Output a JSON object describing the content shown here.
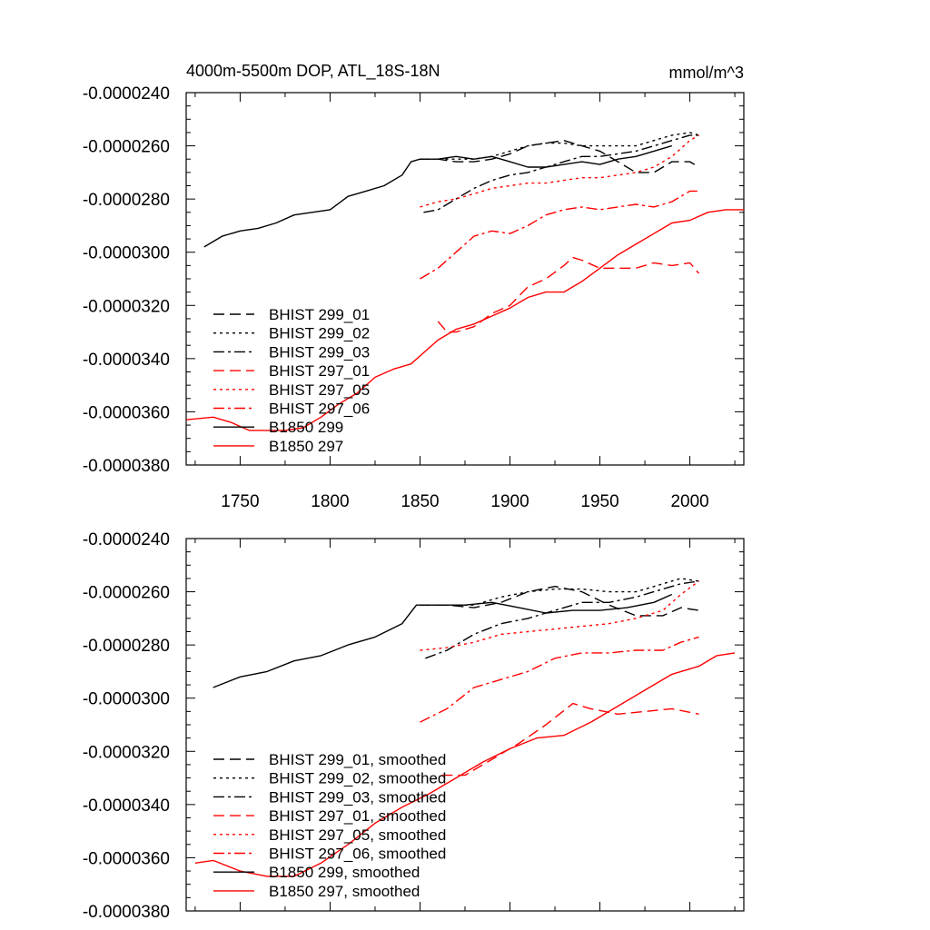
{
  "chart_data": [
    {
      "type": "line",
      "title": "4000m-5500m DOP, ATL_18S-18N",
      "units": "mmol/m^3",
      "xlim": [
        1720,
        2030
      ],
      "ylim": [
        -3.8e-05,
        -2.4e-05
      ],
      "xticks": [
        1750,
        1800,
        1850,
        1900,
        1950,
        2000
      ],
      "xtick_labels": [
        "1750",
        "1800",
        "1850",
        "1900",
        "1950",
        "2000"
      ],
      "yticks": [
        -2.4e-05,
        -2.6e-05,
        -2.8e-05,
        -3e-05,
        -3.2e-05,
        -3.4e-05,
        -3.6e-05,
        -3.8e-05
      ],
      "ytick_labels": [
        "-0.0000240",
        "-0.0000260",
        "-0.0000280",
        "-0.0000300",
        "-0.0000320",
        "-0.0000340",
        "-0.0000360",
        "-0.0000380"
      ],
      "series": [
        {
          "name": "BHIST 299_01",
          "color": "#000000",
          "dash": "dash",
          "x": [
            1850,
            1860,
            1870,
            1880,
            1890,
            1900,
            1910,
            1920,
            1930,
            1940,
            1950,
            1960,
            1970,
            1980,
            1990,
            2000,
            2005
          ],
          "y": [
            -2.65e-05,
            -2.65e-05,
            -2.66e-05,
            -2.66e-05,
            -2.65e-05,
            -2.63e-05,
            -2.6e-05,
            -2.59e-05,
            -2.58e-05,
            -2.6e-05,
            -2.62e-05,
            -2.66e-05,
            -2.7e-05,
            -2.7e-05,
            -2.66e-05,
            -2.66e-05,
            -2.68e-05
          ]
        },
        {
          "name": "BHIST 299_02",
          "color": "#000000",
          "dash": "dot",
          "x": [
            1850,
            1860,
            1870,
            1880,
            1890,
            1900,
            1910,
            1920,
            1930,
            1940,
            1950,
            1960,
            1970,
            1980,
            1990,
            2000,
            2005
          ],
          "y": [
            -2.65e-05,
            -2.65e-05,
            -2.65e-05,
            -2.65e-05,
            -2.64e-05,
            -2.62e-05,
            -2.6e-05,
            -2.59e-05,
            -2.59e-05,
            -2.6e-05,
            -2.6e-05,
            -2.6e-05,
            -2.6e-05,
            -2.58e-05,
            -2.56e-05,
            -2.55e-05,
            -2.56e-05
          ]
        },
        {
          "name": "BHIST 299_03",
          "color": "#000000",
          "dash": "dashdot",
          "x": [
            1852,
            1860,
            1870,
            1880,
            1890,
            1900,
            1910,
            1920,
            1930,
            1940,
            1950,
            1960,
            1970,
            1980,
            1990,
            2000,
            2005
          ],
          "y": [
            -2.85e-05,
            -2.84e-05,
            -2.8e-05,
            -2.76e-05,
            -2.73e-05,
            -2.71e-05,
            -2.7e-05,
            -2.68e-05,
            -2.66e-05,
            -2.64e-05,
            -2.64e-05,
            -2.63e-05,
            -2.62e-05,
            -2.6e-05,
            -2.58e-05,
            -2.56e-05,
            -2.56e-05
          ]
        },
        {
          "name": "BHIST 297_01",
          "color": "#ff0000",
          "dash": "dash",
          "x": [
            1860,
            1865,
            1870,
            1880,
            1890,
            1900,
            1910,
            1920,
            1930,
            1935,
            1940,
            1950,
            1960,
            1970,
            1980,
            1990,
            2000,
            2005
          ],
          "y": [
            -3.26e-05,
            -3.3e-05,
            -3.3e-05,
            -3.28e-05,
            -3.23e-05,
            -3.2e-05,
            -3.13e-05,
            -3.1e-05,
            -3.05e-05,
            -3.02e-05,
            -3.03e-05,
            -3.06e-05,
            -3.06e-05,
            -3.06e-05,
            -3.04e-05,
            -3.05e-05,
            -3.04e-05,
            -3.08e-05
          ]
        },
        {
          "name": "BHIST 297_05",
          "color": "#ff0000",
          "dash": "dot",
          "x": [
            1850,
            1860,
            1870,
            1880,
            1890,
            1900,
            1910,
            1920,
            1930,
            1940,
            1950,
            1960,
            1970,
            1980,
            1990,
            2000,
            2005
          ],
          "y": [
            -2.83e-05,
            -2.81e-05,
            -2.8e-05,
            -2.78e-05,
            -2.76e-05,
            -2.75e-05,
            -2.74e-05,
            -2.74e-05,
            -2.73e-05,
            -2.72e-05,
            -2.72e-05,
            -2.71e-05,
            -2.7e-05,
            -2.68e-05,
            -2.64e-05,
            -2.58e-05,
            -2.56e-05
          ]
        },
        {
          "name": "BHIST 297_06",
          "color": "#ff0000",
          "dash": "dashdot",
          "x": [
            1850,
            1860,
            1870,
            1880,
            1890,
            1900,
            1910,
            1920,
            1930,
            1940,
            1950,
            1960,
            1970,
            1980,
            1990,
            2000,
            2005
          ],
          "y": [
            -3.1e-05,
            -3.06e-05,
            -3e-05,
            -2.94e-05,
            -2.92e-05,
            -2.93e-05,
            -2.9e-05,
            -2.86e-05,
            -2.84e-05,
            -2.83e-05,
            -2.84e-05,
            -2.83e-05,
            -2.82e-05,
            -2.83e-05,
            -2.81e-05,
            -2.77e-05,
            -2.77e-05
          ]
        },
        {
          "name": "B1850 299",
          "color": "#000000",
          "dash": "solid",
          "x": [
            1730,
            1740,
            1750,
            1760,
            1770,
            1780,
            1790,
            1800,
            1810,
            1820,
            1830,
            1840,
            1845,
            1850,
            1860,
            1870,
            1880,
            1890,
            1900,
            1910,
            1920,
            1930,
            1940,
            1950,
            1960,
            1970,
            1980,
            1990
          ],
          "y": [
            -2.98e-05,
            -2.94e-05,
            -2.92e-05,
            -2.91e-05,
            -2.89e-05,
            -2.86e-05,
            -2.85e-05,
            -2.84e-05,
            -2.79e-05,
            -2.77e-05,
            -2.75e-05,
            -2.71e-05,
            -2.66e-05,
            -2.65e-05,
            -2.65e-05,
            -2.64e-05,
            -2.65e-05,
            -2.64e-05,
            -2.66e-05,
            -2.68e-05,
            -2.68e-05,
            -2.67e-05,
            -2.66e-05,
            -2.67e-05,
            -2.65e-05,
            -2.64e-05,
            -2.62e-05,
            -2.6e-05
          ]
        },
        {
          "name": "B1850 297",
          "color": "#ff0000",
          "dash": "solid",
          "x": [
            1720,
            1735,
            1745,
            1755,
            1765,
            1775,
            1785,
            1795,
            1805,
            1815,
            1825,
            1835,
            1845,
            1850,
            1860,
            1870,
            1880,
            1890,
            1900,
            1910,
            1920,
            1930,
            1940,
            1950,
            1960,
            1970,
            1980,
            1990,
            2000,
            2010,
            2020,
            2030
          ],
          "y": [
            -3.63e-05,
            -3.62e-05,
            -3.64e-05,
            -3.67e-05,
            -3.67e-05,
            -3.67e-05,
            -3.66e-05,
            -3.62e-05,
            -3.57e-05,
            -3.53e-05,
            -3.47e-05,
            -3.44e-05,
            -3.42e-05,
            -3.39e-05,
            -3.33e-05,
            -3.29e-05,
            -3.27e-05,
            -3.24e-05,
            -3.21e-05,
            -3.17e-05,
            -3.15e-05,
            -3.15e-05,
            -3.11e-05,
            -3.06e-05,
            -3.01e-05,
            -2.97e-05,
            -2.93e-05,
            -2.89e-05,
            -2.88e-05,
            -2.85e-05,
            -2.84e-05,
            -2.84e-05
          ]
        }
      ]
    },
    {
      "type": "line",
      "title": "",
      "units": "",
      "xlim": [
        1720,
        2030
      ],
      "ylim": [
        -3.8e-05,
        -2.4e-05
      ],
      "xticks": [
        1750,
        1800,
        1850,
        1900,
        1950,
        2000
      ],
      "xtick_labels": [],
      "yticks": [
        -2.4e-05,
        -2.6e-05,
        -2.8e-05,
        -3e-05,
        -3.2e-05,
        -3.4e-05,
        -3.6e-05,
        -3.8e-05
      ],
      "ytick_labels": [
        "-0.0000240",
        "-0.0000260",
        "-0.0000280",
        "-0.0000300",
        "-0.0000320",
        "-0.0000340",
        "-0.0000360",
        "-0.0000380"
      ],
      "series": [
        {
          "name": "BHIST 299_01, smoothed",
          "color": "#000000",
          "dash": "dash",
          "x": [
            1850,
            1865,
            1880,
            1895,
            1910,
            1925,
            1940,
            1955,
            1970,
            1985,
            1995,
            2005
          ],
          "y": [
            -2.65e-05,
            -2.65e-05,
            -2.66e-05,
            -2.64e-05,
            -2.6e-05,
            -2.58e-05,
            -2.6e-05,
            -2.65e-05,
            -2.69e-05,
            -2.69e-05,
            -2.66e-05,
            -2.67e-05
          ]
        },
        {
          "name": "BHIST 299_02, smoothed",
          "color": "#000000",
          "dash": "dot",
          "x": [
            1850,
            1865,
            1880,
            1895,
            1910,
            1925,
            1940,
            1955,
            1970,
            1985,
            1995,
            2005
          ],
          "y": [
            -2.65e-05,
            -2.65e-05,
            -2.65e-05,
            -2.62e-05,
            -2.6e-05,
            -2.59e-05,
            -2.59e-05,
            -2.6e-05,
            -2.6e-05,
            -2.57e-05,
            -2.55e-05,
            -2.56e-05
          ]
        },
        {
          "name": "BHIST 299_03, smoothed",
          "color": "#000000",
          "dash": "dashdot",
          "x": [
            1853,
            1865,
            1880,
            1895,
            1910,
            1925,
            1940,
            1955,
            1970,
            1985,
            1995,
            2005
          ],
          "y": [
            -2.85e-05,
            -2.82e-05,
            -2.76e-05,
            -2.72e-05,
            -2.7e-05,
            -2.67e-05,
            -2.64e-05,
            -2.64e-05,
            -2.62e-05,
            -2.59e-05,
            -2.57e-05,
            -2.56e-05
          ]
        },
        {
          "name": "BHIST 297_01, smoothed",
          "color": "#ff0000",
          "dash": "dash",
          "x": [
            1862,
            1875,
            1890,
            1905,
            1920,
            1935,
            1945,
            1960,
            1975,
            1990,
            2005
          ],
          "y": [
            -3.29e-05,
            -3.29e-05,
            -3.23e-05,
            -3.17e-05,
            -3.1e-05,
            -3.02e-05,
            -3.04e-05,
            -3.06e-05,
            -3.05e-05,
            -3.04e-05,
            -3.06e-05
          ]
        },
        {
          "name": "BHIST 297_05, smoothed",
          "color": "#ff0000",
          "dash": "dot",
          "x": [
            1850,
            1865,
            1880,
            1895,
            1910,
            1925,
            1940,
            1955,
            1970,
            1985,
            1995,
            2005
          ],
          "y": [
            -2.82e-05,
            -2.81e-05,
            -2.79e-05,
            -2.76e-05,
            -2.75e-05,
            -2.74e-05,
            -2.73e-05,
            -2.72e-05,
            -2.7e-05,
            -2.67e-05,
            -2.61e-05,
            -2.56e-05
          ]
        },
        {
          "name": "BHIST 297_06, smoothed",
          "color": "#ff0000",
          "dash": "dashdot",
          "x": [
            1850,
            1865,
            1880,
            1895,
            1910,
            1925,
            1940,
            1955,
            1970,
            1985,
            1995,
            2005
          ],
          "y": [
            -3.09e-05,
            -3.04e-05,
            -2.96e-05,
            -2.93e-05,
            -2.9e-05,
            -2.85e-05,
            -2.83e-05,
            -2.83e-05,
            -2.82e-05,
            -2.82e-05,
            -2.79e-05,
            -2.77e-05
          ]
        },
        {
          "name": "B1850 299, smoothed",
          "color": "#000000",
          "dash": "solid",
          "x": [
            1735,
            1750,
            1765,
            1780,
            1795,
            1810,
            1825,
            1840,
            1848,
            1860,
            1875,
            1890,
            1905,
            1920,
            1935,
            1950,
            1965,
            1980,
            1990
          ],
          "y": [
            -2.96e-05,
            -2.92e-05,
            -2.9e-05,
            -2.86e-05,
            -2.84e-05,
            -2.8e-05,
            -2.77e-05,
            -2.72e-05,
            -2.65e-05,
            -2.65e-05,
            -2.65e-05,
            -2.64e-05,
            -2.66e-05,
            -2.68e-05,
            -2.67e-05,
            -2.67e-05,
            -2.66e-05,
            -2.64e-05,
            -2.61e-05
          ]
        },
        {
          "name": "B1850 297, smoothed",
          "color": "#ff0000",
          "dash": "solid",
          "x": [
            1725,
            1735,
            1750,
            1765,
            1780,
            1795,
            1810,
            1825,
            1840,
            1855,
            1870,
            1885,
            1900,
            1915,
            1930,
            1945,
            1960,
            1975,
            1990,
            2005,
            2015,
            2025
          ],
          "y": [
            -3.62e-05,
            -3.61e-05,
            -3.65e-05,
            -3.67e-05,
            -3.67e-05,
            -3.62e-05,
            -3.55e-05,
            -3.47e-05,
            -3.41e-05,
            -3.36e-05,
            -3.3e-05,
            -3.24e-05,
            -3.19e-05,
            -3.15e-05,
            -3.14e-05,
            -3.09e-05,
            -3.03e-05,
            -2.97e-05,
            -2.91e-05,
            -2.88e-05,
            -2.84e-05,
            -2.83e-05
          ]
        }
      ]
    }
  ]
}
